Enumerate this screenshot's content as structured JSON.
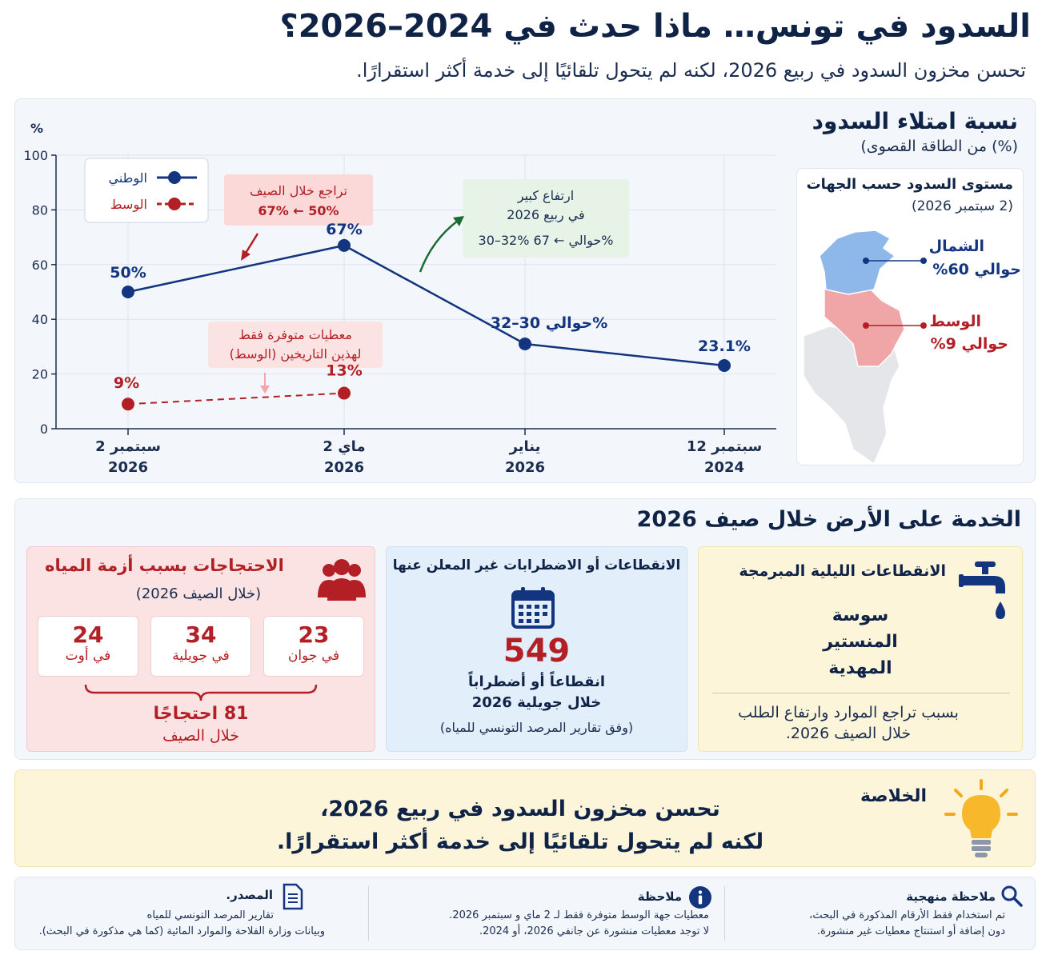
{
  "header": {
    "title": "السدود في تونس… ماذا حدث في 2024–2026؟",
    "subtitle": "تحسن مخزون السدود في ربيع 2026، لكنه لم يتحول تلقائيًا إلى خدمة أكثر استقرارًا."
  },
  "fill_panel": {
    "title": "نسبة امتلاء السدود",
    "subtitle": "(%) من الطاقة القصوى)"
  },
  "chart_data": {
    "type": "line",
    "ylabel": "%",
    "ylim": [
      0,
      100
    ],
    "yticks": [
      0,
      20,
      40,
      60,
      80,
      100
    ],
    "categories": [
      {
        "line1": "2 سبتمبر",
        "line2": "2026"
      },
      {
        "line1": "2 ماي",
        "line2": "2026"
      },
      {
        "line1": "يناير",
        "line2": "2026"
      },
      {
        "line1": "12 سبتمبر",
        "line2": "2024"
      }
    ],
    "legend_placement": "top-left",
    "series": [
      {
        "name": "الوطني",
        "color": "#133580",
        "style": "solid",
        "values": [
          50,
          67,
          31,
          23.1
        ],
        "labels": [
          "50%",
          "67%",
          "حوالي 30–32%",
          "23.1%"
        ]
      },
      {
        "name": "الوسط",
        "color": "#b21f24",
        "style": "dashed",
        "values": [
          9,
          13,
          null,
          null
        ],
        "labels": [
          "9%",
          "13%",
          "",
          ""
        ]
      }
    ],
    "annotations": {
      "summer_drop": {
        "line1": "تراجع خلال الصيف",
        "line2": "67% ← 50%"
      },
      "spring_rise": {
        "line1": "ارتفاع كبير",
        "line2": "في ربيع 2026",
        "line3": "30–32% حوالي ← 67%"
      },
      "center_note": {
        "line1": "معطيات متوفرة فقط",
        "line2": "لهذين التاريخين (الوسط)"
      }
    }
  },
  "regions_map": {
    "title": "مستوى السدود حسب الجهات",
    "subtitle": "(2 سبتمبر 2026)",
    "north": {
      "name": "الشمال",
      "value": "حوالي 60%",
      "color": "#8fb8ea"
    },
    "center": {
      "name": "الوسط",
      "value": "حوالي 9%",
      "color": "#f0a6a6"
    }
  },
  "service": {
    "title": "الخدمة على الأرض خلال صيف 2026",
    "protests": {
      "title": "الاحتجاجات بسبب أزمة المياه",
      "subtitle": "(خلال الصيف 2026)",
      "months": [
        {
          "value": "23",
          "label": "في جوان"
        },
        {
          "value": "34",
          "label": "في جويلية"
        },
        {
          "value": "24",
          "label": "في أوت"
        }
      ],
      "total": "81 احتجاجًا",
      "total_sub": "خلال الصيف"
    },
    "outages": {
      "title": "الانقطاعات أو الاضطرابات غير المعلن عنها",
      "value": "549",
      "line1": "انقطاعاً أو أضطراباً",
      "line2": "خلال جويلية 2026",
      "source": "(وفق تقارير المرصد التونسي للمياه)"
    },
    "night_cuts": {
      "title": "الانقطاعات الليلية المبرمجة",
      "cities": [
        "سوسة",
        "المنستير",
        "المهدية"
      ],
      "note_line1": "بسبب تراجع الموارد وارتفاع الطلب",
      "note_line2": "خلال الصيف 2026."
    }
  },
  "conclusion": {
    "label": "الخلاصة",
    "line1": "تحسن مخزون السدود في ربيع 2026،",
    "line2": "لكنه لم يتحول تلقائيًا إلى خدمة أكثر استقرارًا."
  },
  "footer": {
    "method": {
      "head": "ملاحظة منهجية",
      "line1": "تم استخدام فقط الأرقام المذكورة في البحث،",
      "line2": "دون إضافة أو استنتاج معطيات غير منشورة."
    },
    "note": {
      "head": "ملاحظة",
      "line1": "معطيات جهة الوسط متوفرة فقط لـ 2 ماي و سبتمبر 2026.",
      "line2": "لا توجد معطيات منشورة عن جانفي 2026، أو 2024."
    },
    "source": {
      "head": "المصدر.",
      "line1": "تقارير المرصد التونسي للمياه",
      "line2": "وبيانات وزارة الفلاحة والموارد المائية (كما هي مذكورة في البحث)."
    }
  }
}
